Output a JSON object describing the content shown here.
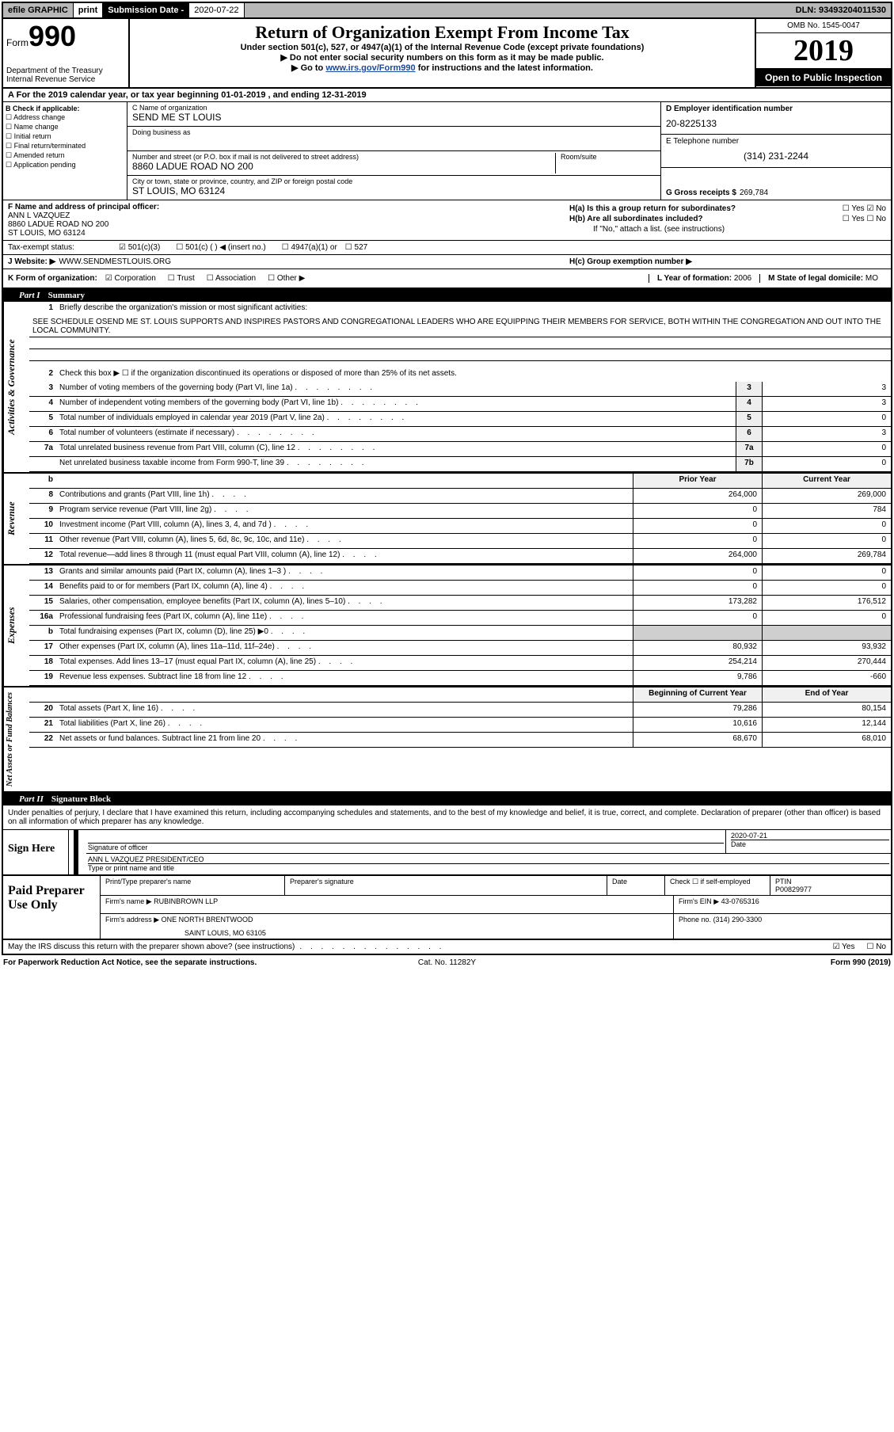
{
  "top_bar": {
    "efile": "efile GRAPHIC",
    "print": "print",
    "sub_label": "Submission Date -",
    "sub_date": "2020-07-22",
    "dln": "DLN: 93493204011530"
  },
  "header": {
    "form_label": "Form",
    "form_number": "990",
    "dept": "Department of the Treasury\nInternal Revenue Service",
    "title": "Return of Organization Exempt From Income Tax",
    "subtitle": "Under section 501(c), 527, or 4947(a)(1) of the Internal Revenue Code (except private foundations)",
    "note1": "▶ Do not enter social security numbers on this form as it may be made public.",
    "note2_prefix": "▶ Go to ",
    "note2_link": "www.irs.gov/Form990",
    "note2_suffix": " for instructions and the latest information.",
    "omb": "OMB No. 1545-0047",
    "year": "2019",
    "inspection": "Open to Public Inspection"
  },
  "period": "For the 2019 calendar year, or tax year beginning 01-01-2019   , and ending 12-31-2019",
  "section_b": {
    "header": "B Check if applicable:",
    "options": [
      "Address change",
      "Name change",
      "Initial return",
      "Final return/terminated",
      "Amended return",
      "Application pending"
    ]
  },
  "section_c": {
    "name_label": "C Name of organization",
    "name": "SEND ME ST LOUIS",
    "dba_label": "Doing business as",
    "dba": "",
    "street_label": "Number and street (or P.O. box if mail is not delivered to street address)",
    "street": "8860 LADUE ROAD NO 200",
    "room_label": "Room/suite",
    "city_label": "City or town, state or province, country, and ZIP or foreign postal code",
    "city": "ST LOUIS, MO  63124"
  },
  "section_d": {
    "ein_label": "D Employer identification number",
    "ein": "20-8225133",
    "phone_label": "E Telephone number",
    "phone": "(314) 231-2244",
    "receipts_label": "G Gross receipts $",
    "receipts": "269,784"
  },
  "section_f": {
    "label": "F  Name and address of principal officer:",
    "name": "ANN L VAZQUEZ",
    "addr1": "8860 LADUE ROAD NO 200",
    "addr2": "ST LOUIS, MO  63124"
  },
  "section_h": {
    "ha_label": "H(a)  Is this a group return for subordinates?",
    "hb_label": "H(b)  Are all subordinates included?",
    "hb_note": "If \"No,\" attach a list. (see instructions)",
    "hc_label": "H(c)  Group exemption number ▶",
    "yes": "Yes",
    "no": "No"
  },
  "tax_exempt": {
    "label": "Tax-exempt status:",
    "opt1": "501(c)(3)",
    "opt2": "501(c) (  ) ◀ (insert no.)",
    "opt3": "4947(a)(1) or",
    "opt4": "527"
  },
  "website": {
    "label": "J  Website: ▶",
    "value": "WWW.SENDMESTLOUIS.ORG"
  },
  "section_k": {
    "label": "K Form of organization:",
    "opt1": "Corporation",
    "opt2": "Trust",
    "opt3": "Association",
    "opt4": "Other ▶",
    "l_label": "L Year of formation:",
    "l_value": "2006",
    "m_label": "M State of legal domicile:",
    "m_value": "MO"
  },
  "part1": {
    "label": "Part I",
    "title": "Summary"
  },
  "activities": {
    "label": "Activities & Governance",
    "line1_label": "Briefly describe the organization's mission or most significant activities:",
    "line1_text": "SEE SCHEDULE OSEND ME ST. LOUIS SUPPORTS AND INSPIRES PASTORS AND CONGREGATIONAL LEADERS WHO ARE EQUIPPING THEIR MEMBERS FOR SERVICE, BOTH WITHIN THE CONGREGATION AND OUT INTO THE LOCAL COMMUNITY.",
    "line2": "Check this box ▶ ☐  if the organization discontinued its operations or disposed of more than 25% of its net assets.",
    "lines": [
      {
        "num": "3",
        "desc": "Number of voting members of the governing body (Part VI, line 1a)",
        "box": "3",
        "val": "3"
      },
      {
        "num": "4",
        "desc": "Number of independent voting members of the governing body (Part VI, line 1b)",
        "box": "4",
        "val": "3"
      },
      {
        "num": "5",
        "desc": "Total number of individuals employed in calendar year 2019 (Part V, line 2a)",
        "box": "5",
        "val": "0"
      },
      {
        "num": "6",
        "desc": "Total number of volunteers (estimate if necessary)",
        "box": "6",
        "val": "3"
      },
      {
        "num": "7a",
        "desc": "Total unrelated business revenue from Part VIII, column (C), line 12",
        "box": "7a",
        "val": "0"
      },
      {
        "num": "",
        "desc": "Net unrelated business taxable income from Form 990-T, line 39",
        "box": "7b",
        "val": "0"
      }
    ]
  },
  "revenue": {
    "label": "Revenue",
    "prior_label": "Prior Year",
    "current_label": "Current Year",
    "header_num": "b",
    "lines": [
      {
        "num": "8",
        "desc": "Contributions and grants (Part VIII, line 1h)",
        "prior": "264,000",
        "current": "269,000"
      },
      {
        "num": "9",
        "desc": "Program service revenue (Part VIII, line 2g)",
        "prior": "0",
        "current": "784"
      },
      {
        "num": "10",
        "desc": "Investment income (Part VIII, column (A), lines 3, 4, and 7d )",
        "prior": "0",
        "current": "0"
      },
      {
        "num": "11",
        "desc": "Other revenue (Part VIII, column (A), lines 5, 6d, 8c, 9c, 10c, and 11e)",
        "prior": "0",
        "current": "0"
      },
      {
        "num": "12",
        "desc": "Total revenue—add lines 8 through 11 (must equal Part VIII, column (A), line 12)",
        "prior": "264,000",
        "current": "269,784"
      }
    ]
  },
  "expenses": {
    "label": "Expenses",
    "lines": [
      {
        "num": "13",
        "desc": "Grants and similar amounts paid (Part IX, column (A), lines 1–3 )",
        "prior": "0",
        "current": "0"
      },
      {
        "num": "14",
        "desc": "Benefits paid to or for members (Part IX, column (A), line 4)",
        "prior": "0",
        "current": "0"
      },
      {
        "num": "15",
        "desc": "Salaries, other compensation, employee benefits (Part IX, column (A), lines 5–10)",
        "prior": "173,282",
        "current": "176,512"
      },
      {
        "num": "16a",
        "desc": "Professional fundraising fees (Part IX, column (A), line 11e)",
        "prior": "0",
        "current": "0"
      },
      {
        "num": "b",
        "desc": "Total fundraising expenses (Part IX, column (D), line 25) ▶0",
        "prior": "shaded",
        "current": "shaded"
      },
      {
        "num": "17",
        "desc": "Other expenses (Part IX, column (A), lines 11a–11d, 11f–24e)",
        "prior": "80,932",
        "current": "93,932"
      },
      {
        "num": "18",
        "desc": "Total expenses. Add lines 13–17 (must equal Part IX, column (A), line 25)",
        "prior": "254,214",
        "current": "270,444"
      },
      {
        "num": "19",
        "desc": "Revenue less expenses. Subtract line 18 from line 12",
        "prior": "9,786",
        "current": "-660"
      }
    ]
  },
  "netassets": {
    "label": "Net Assets or Fund Balances",
    "begin_label": "Beginning of Current Year",
    "end_label": "End of Year",
    "lines": [
      {
        "num": "20",
        "desc": "Total assets (Part X, line 16)",
        "prior": "79,286",
        "current": "80,154"
      },
      {
        "num": "21",
        "desc": "Total liabilities (Part X, line 26)",
        "prior": "10,616",
        "current": "12,144"
      },
      {
        "num": "22",
        "desc": "Net assets or fund balances. Subtract line 21 from line 20",
        "prior": "68,670",
        "current": "68,010"
      }
    ]
  },
  "part2": {
    "label": "Part II",
    "title": "Signature Block"
  },
  "sig_text": "Under penalties of perjury, I declare that I have examined this return, including accompanying schedules and statements, and to the best of my knowledge and belief, it is true, correct, and complete. Declaration of preparer (other than officer) is based on all information of which preparer has any knowledge.",
  "sign": {
    "label": "Sign Here",
    "sig_label": "Signature of officer",
    "date_label": "Date",
    "date": "2020-07-21",
    "name": "ANN L VAZQUEZ  PRESIDENT/CEO",
    "name_label": "Type or print name and title"
  },
  "paid": {
    "label": "Paid Preparer Use Only",
    "col1": "Print/Type preparer's name",
    "col2": "Preparer's signature",
    "col3": "Date",
    "col4_check": "Check ☐ if self-employed",
    "col5_label": "PTIN",
    "col5": "P00829977",
    "firm_label": "Firm's name   ▶",
    "firm": "RUBINBROWN LLP",
    "ein_label": "Firm's EIN ▶",
    "ein": "43-0765316",
    "addr_label": "Firm's address ▶",
    "addr1": "ONE NORTH BRENTWOOD",
    "addr2": "SAINT LOUIS, MO  63105",
    "phone_label": "Phone no.",
    "phone": "(314) 290-3300"
  },
  "discuss": {
    "text": "May the IRS discuss this return with the preparer shown above? (see instructions)",
    "yes": "Yes",
    "no": "No"
  },
  "footer": {
    "left": "For Paperwork Reduction Act Notice, see the separate instructions.",
    "center": "Cat. No. 11282Y",
    "right_prefix": "Form ",
    "right_form": "990",
    "right_suffix": " (2019)"
  }
}
